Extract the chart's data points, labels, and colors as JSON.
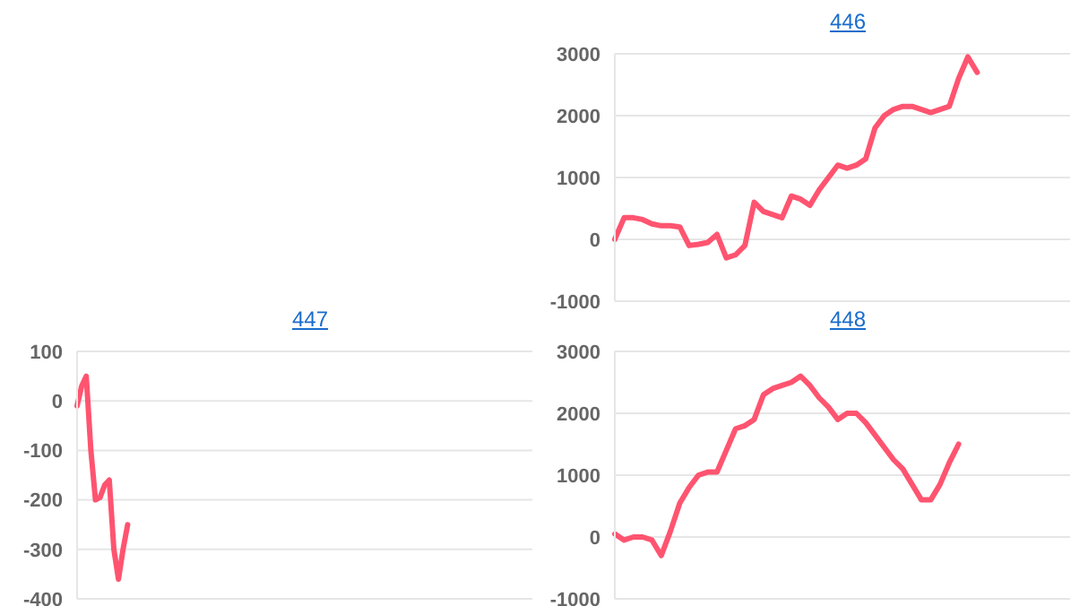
{
  "chart_data": [
    {
      "type": "line",
      "title": "446",
      "categories": [
        null,
        null,
        null,
        null,
        null,
        null,
        null,
        null,
        null,
        null,
        null,
        null,
        null,
        null,
        null,
        null,
        null,
        null,
        null,
        null,
        null,
        null,
        null,
        null,
        null,
        null,
        null,
        null,
        null,
        null,
        null,
        null,
        null,
        null,
        null,
        null,
        null,
        null,
        null,
        null,
        null,
        null,
        null,
        null,
        null,
        null,
        null,
        null,
        null,
        null
      ],
      "series": [
        {
          "color": "#ff5470",
          "values": [
            0,
            350,
            350,
            320,
            250,
            220,
            220,
            200,
            -100,
            -80,
            -50,
            80,
            -300,
            -250,
            -100,
            600,
            450,
            400,
            350,
            700,
            650,
            550,
            800,
            1000,
            1200,
            1150,
            1200,
            1300,
            1800,
            2000,
            2100,
            2150,
            2150,
            2100,
            2050,
            2100,
            2150,
            2600,
            2950,
            2700,
            null,
            null,
            null,
            null,
            null,
            null,
            null,
            null,
            null,
            null
          ]
        }
      ],
      "ylim": [
        -1000,
        3000
      ],
      "yticks": [
        -1000,
        0,
        1000,
        2000,
        3000
      ],
      "grid": "y",
      "legend": false,
      "marker": "none",
      "tick_labels": "y"
    },
    {
      "type": "line",
      "title": "447",
      "categories": [
        null,
        null,
        null,
        null,
        null,
        null,
        null,
        null,
        null,
        null,
        null,
        null,
        null,
        null,
        null,
        null,
        null,
        null,
        null,
        null,
        null,
        null,
        null,
        null,
        null,
        null,
        null,
        null,
        null,
        null,
        null,
        null,
        null,
        null,
        null,
        null,
        null,
        null,
        null,
        null,
        null,
        null,
        null,
        null,
        null,
        null,
        null,
        null,
        null,
        null,
        null,
        null,
        null,
        null,
        null,
        null,
        null,
        null,
        null,
        null,
        null,
        null,
        null,
        null,
        null,
        null,
        null,
        null,
        null,
        null,
        null,
        null,
        null,
        null,
        null,
        null,
        null,
        null,
        null,
        null,
        null,
        null,
        null,
        null,
        null,
        null,
        null,
        null,
        null,
        null,
        null,
        null,
        null,
        null,
        null,
        null,
        null,
        null,
        null,
        null
      ],
      "series": [
        {
          "color": "#ff5470",
          "values": [
            -10,
            30,
            50,
            -100,
            -200,
            -195,
            -170,
            -160,
            -300,
            -360,
            -300,
            -250,
            null,
            null,
            null,
            null,
            null,
            null,
            null,
            null,
            null,
            null,
            null,
            null,
            null,
            null,
            null,
            null,
            null,
            null,
            null,
            null,
            null,
            null,
            null,
            null,
            null,
            null,
            null,
            null,
            null,
            null,
            null,
            null,
            null,
            null,
            null,
            null,
            null,
            null,
            null,
            null,
            null,
            null,
            null,
            null,
            null,
            null,
            null,
            null,
            null,
            null,
            null,
            null,
            null,
            null,
            null,
            null,
            null,
            null,
            null,
            null,
            null,
            null,
            null,
            null,
            null,
            null,
            null,
            null,
            null,
            null,
            null,
            null,
            null,
            null,
            null,
            null,
            null,
            null,
            null,
            null,
            null,
            null,
            null,
            null,
            null,
            null,
            null,
            null
          ]
        }
      ],
      "ylim": [
        -400,
        100
      ],
      "yticks": [
        -400,
        -300,
        -200,
        -100,
        0,
        100
      ],
      "grid": "y",
      "legend": false,
      "marker": "none",
      "tick_labels": "y"
    },
    {
      "type": "line",
      "title": "448",
      "categories": [
        null,
        null,
        null,
        null,
        null,
        null,
        null,
        null,
        null,
        null,
        null,
        null,
        null,
        null,
        null,
        null,
        null,
        null,
        null,
        null,
        null,
        null,
        null,
        null,
        null,
        null,
        null,
        null,
        null,
        null,
        null,
        null,
        null,
        null,
        null,
        null,
        null,
        null,
        null,
        null,
        null,
        null,
        null,
        null,
        null,
        null,
        null,
        null,
        null,
        null
      ],
      "series": [
        {
          "color": "#ff5470",
          "values": [
            50,
            -50,
            0,
            0,
            -50,
            -300,
            100,
            550,
            800,
            1000,
            1050,
            1050,
            1400,
            1750,
            1800,
            1900,
            2300,
            2400,
            2450,
            2500,
            2600,
            2450,
            2250,
            2100,
            1900,
            2000,
            2000,
            1850,
            1650,
            1450,
            1250,
            1100,
            850,
            600,
            600,
            850,
            1200,
            1500,
            null,
            null,
            null,
            null,
            null,
            null,
            null,
            null,
            null,
            null,
            null,
            null
          ]
        }
      ],
      "ylim": [
        -1000,
        3000
      ],
      "yticks": [
        -1000,
        0,
        1000,
        2000,
        3000
      ],
      "grid": "y",
      "legend": false,
      "marker": "none",
      "tick_labels": "y"
    }
  ]
}
